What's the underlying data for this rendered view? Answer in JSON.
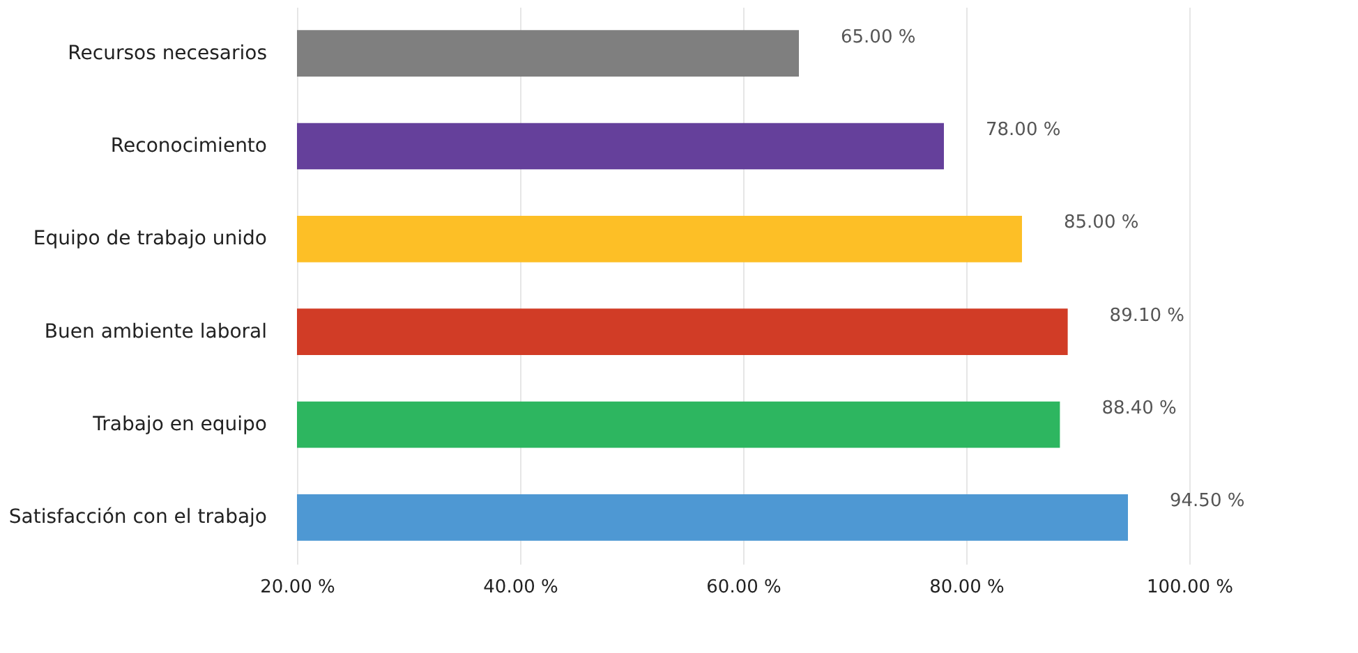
{
  "chart_data": {
    "type": "bar",
    "orientation": "horizontal",
    "categories": [
      "Recursos necesarios",
      "Reconocimiento",
      "Equipo de trabajo unido",
      "Buen ambiente laboral",
      "Trabajo en equipo",
      "Satisfacción con el trabajo"
    ],
    "values": [
      65.0,
      78.0,
      85.0,
      89.1,
      88.4,
      94.5
    ],
    "colors": [
      "#7f7f7f",
      "#65409b",
      "#fdbf26",
      "#d13c26",
      "#2db660",
      "#4e98d3"
    ],
    "value_labels": [
      "65.00 %",
      "78.00 %",
      "85.00 %",
      "89.10 %",
      "88.40 %",
      "94.50 %"
    ],
    "xlim": [
      20,
      100
    ],
    "xticks": [
      {
        "value": 20,
        "label": "20.00 %"
      },
      {
        "value": 40,
        "label": "40.00 %"
      },
      {
        "value": 60,
        "label": "60.00 %"
      },
      {
        "value": 80,
        "label": "80.00 %"
      },
      {
        "value": 100,
        "label": "100.00 %"
      }
    ],
    "grid": "x"
  }
}
